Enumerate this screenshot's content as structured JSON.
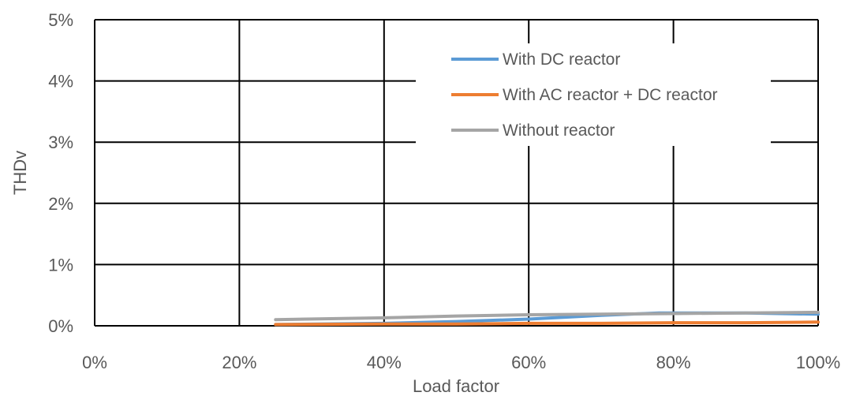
{
  "chart_data": {
    "type": "line",
    "title": "",
    "xlabel": "Load factor",
    "ylabel": "THDv",
    "xlim": [
      0,
      1
    ],
    "ylim": [
      0,
      0.05
    ],
    "x_ticks": [
      "0%",
      "20%",
      "40%",
      "60%",
      "80%",
      "100%"
    ],
    "y_ticks": [
      "0%",
      "1%",
      "2%",
      "3%",
      "4%",
      "5%"
    ],
    "grid": true,
    "legend_position": "top-right",
    "series": [
      {
        "name": "With DC reactor",
        "color": "#5B9BD5",
        "x": [
          0.25,
          0.4,
          0.5,
          0.6,
          0.7,
          0.78,
          0.9,
          1.0
        ],
        "y": [
          0.0002,
          0.0004,
          0.0007,
          0.0011,
          0.0017,
          0.0021,
          0.0021,
          0.0019
        ]
      },
      {
        "name": "With AC reactor + DC reactor",
        "color": "#ED7D31",
        "x": [
          0.25,
          0.4,
          0.5,
          0.6,
          0.7,
          0.8,
          0.9,
          1.0
        ],
        "y": [
          0.0002,
          0.0003,
          0.0003,
          0.0004,
          0.0004,
          0.0005,
          0.0005,
          0.0006
        ]
      },
      {
        "name": "Without reactor",
        "color": "#A5A5A5",
        "x": [
          0.25,
          0.4,
          0.5,
          0.6,
          0.7,
          0.8,
          0.9,
          1.0
        ],
        "y": [
          0.001,
          0.0013,
          0.0016,
          0.0018,
          0.0019,
          0.002,
          0.0021,
          0.0022
        ]
      }
    ]
  }
}
